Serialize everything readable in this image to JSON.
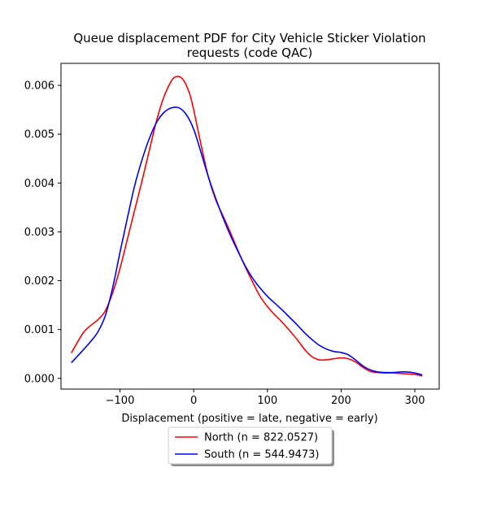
{
  "chart_data": {
    "type": "line",
    "title": "Queue displacement PDF for City Vehicle Sticker Violation\nrequests (code QAC)",
    "xlabel": "Displacement (positive = late, negative = early)",
    "ylabel": "",
    "xlim": [
      -180,
      333
    ],
    "ylim": [
      -0.00022,
      0.00645
    ],
    "xticks": [
      -100,
      0,
      100,
      200,
      300
    ],
    "xtick_labels": [
      "−100",
      "0",
      "100",
      "200",
      "300"
    ],
    "yticks": [
      0.0,
      0.001,
      0.002,
      0.003,
      0.004,
      0.005,
      0.006
    ],
    "ytick_labels": [
      "0.000",
      "0.001",
      "0.002",
      "0.003",
      "0.004",
      "0.005",
      "0.006"
    ],
    "grid": false,
    "legend_placement": "bottom-center below axes",
    "series": [
      {
        "name": "North (n = 822.0527)",
        "color": "#ff0000",
        "x": [
          -166,
          -150,
          -140,
          -130,
          -120,
          -110,
          -100,
          -90,
          -80,
          -70,
          -60,
          -50,
          -40,
          -30,
          -25,
          -20,
          -15,
          -10,
          -5,
          0,
          10,
          20,
          30,
          40,
          50,
          60,
          70,
          80,
          90,
          100,
          110,
          120,
          130,
          140,
          150,
          160,
          170,
          180,
          190,
          200,
          210,
          220,
          230,
          240,
          250,
          260,
          270,
          280,
          290,
          300,
          310
        ],
        "y": [
          0.00052,
          0.00093,
          0.00108,
          0.0012,
          0.00138,
          0.00175,
          0.00225,
          0.00285,
          0.00345,
          0.00405,
          0.00468,
          0.0053,
          0.00578,
          0.0061,
          0.00617,
          0.00618,
          0.00613,
          0.006,
          0.0058,
          0.0055,
          0.00478,
          0.00412,
          0.00365,
          0.00332,
          0.00298,
          0.00262,
          0.00228,
          0.00197,
          0.00168,
          0.00147,
          0.0013,
          0.00115,
          0.00098,
          0.0008,
          0.0006,
          0.00045,
          0.00038,
          0.00038,
          0.0004,
          0.00042,
          0.0004,
          0.00033,
          0.00022,
          0.00014,
          0.00012,
          0.00011,
          0.00011,
          0.0001,
          9e-05,
          8e-05,
          5e-05
        ]
      },
      {
        "name": "South (n = 544.9473)",
        "color": "#0000ff",
        "x": [
          -166,
          -150,
          -140,
          -130,
          -120,
          -110,
          -100,
          -90,
          -80,
          -70,
          -60,
          -50,
          -40,
          -30,
          -20,
          -10,
          0,
          10,
          20,
          30,
          40,
          50,
          60,
          70,
          80,
          90,
          100,
          110,
          120,
          130,
          140,
          150,
          160,
          170,
          180,
          190,
          200,
          210,
          220,
          230,
          240,
          250,
          260,
          270,
          280,
          290,
          300,
          310
        ],
        "y": [
          0.00032,
          0.00058,
          0.00075,
          0.00095,
          0.00128,
          0.00185,
          0.00258,
          0.00328,
          0.00395,
          0.00448,
          0.00492,
          0.00525,
          0.00545,
          0.00554,
          0.00554,
          0.0054,
          0.0051,
          0.00462,
          0.00412,
          0.00368,
          0.00328,
          0.00292,
          0.0026,
          0.0023,
          0.00205,
          0.00185,
          0.00168,
          0.00154,
          0.0014,
          0.00125,
          0.0011,
          0.00094,
          0.0008,
          0.00068,
          0.0006,
          0.00055,
          0.00053,
          0.00048,
          0.00037,
          0.00025,
          0.00017,
          0.00013,
          0.00012,
          0.00012,
          0.00013,
          0.00013,
          0.00011,
          7e-05
        ]
      }
    ]
  }
}
